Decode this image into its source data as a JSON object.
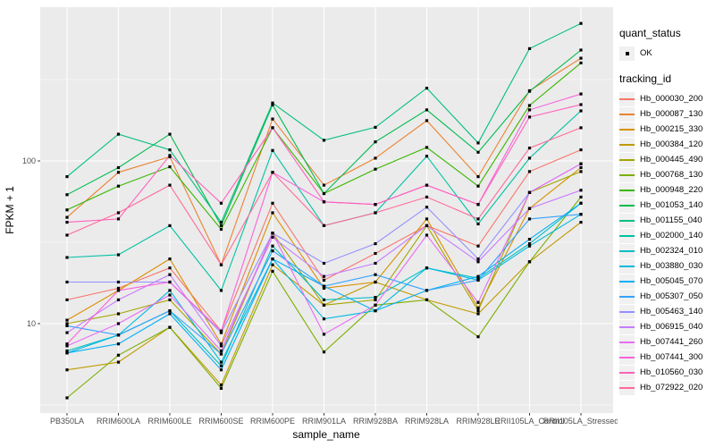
{
  "figure": {
    "background": "#FFFFFF",
    "panel_background": "#EBEBEB",
    "grid_color": "#FFFFFF",
    "axis_text_color": "#4D4D4D",
    "point_color": "#000000",
    "legend_key_background": "#F0F0F0"
  },
  "axes": {
    "x_title": "sample_name",
    "y_title": "FPKM + 1",
    "y_tick_labels": [
      "100",
      "10"
    ],
    "y_tick_values": [
      100,
      10
    ],
    "y_minor_values": [
      3.1623,
      31.623,
      316.23
    ]
  },
  "legend": {
    "quant_status": {
      "title": "quant_status",
      "items": [
        {
          "label": "OK",
          "marker": "black-point"
        }
      ]
    },
    "tracking_id": {
      "title": "tracking_id",
      "items": [
        {
          "label": "Hb_000030_200",
          "color": "#F8766D"
        },
        {
          "label": "Hb_000087_130",
          "color": "#EA8331"
        },
        {
          "label": "Hb_000215_330",
          "color": "#D89000"
        },
        {
          "label": "Hb_000384_120",
          "color": "#C09B00"
        },
        {
          "label": "Hb_000445_490",
          "color": "#A3A500"
        },
        {
          "label": "Hb_000768_130",
          "color": "#7CAE00"
        },
        {
          "label": "Hb_000948_220",
          "color": "#39B600"
        },
        {
          "label": "Hb_001053_140",
          "color": "#00BB4E"
        },
        {
          "label": "Hb_001155_040",
          "color": "#00BF7D"
        },
        {
          "label": "Hb_002000_140",
          "color": "#00C1A3"
        },
        {
          "label": "Hb_002324_010",
          "color": "#00BFC4"
        },
        {
          "label": "Hb_003880_030",
          "color": "#00BAE0"
        },
        {
          "label": "Hb_005045_070",
          "color": "#00B0F6"
        },
        {
          "label": "Hb_005307_050",
          "color": "#35A2FF"
        },
        {
          "label": "Hb_005463_140",
          "color": "#9590FF"
        },
        {
          "label": "Hb_006915_040",
          "color": "#C77CFF"
        },
        {
          "label": "Hb_007441_260",
          "color": "#E76BF3"
        },
        {
          "label": "Hb_007441_300",
          "color": "#FA62DB"
        },
        {
          "label": "Hb_010560_030",
          "color": "#FF62BC"
        },
        {
          "label": "Hb_072922_020",
          "color": "#FF6A98"
        }
      ]
    }
  },
  "chart_data": {
    "type": "line",
    "title": "",
    "xlabel": "sample_name",
    "ylabel": "FPKM + 1",
    "y_scale": "log10",
    "ylim": [
      2.8,
      950
    ],
    "grid": true,
    "legend_position": "right",
    "point_marker": "black square (quant_status = OK)",
    "categories": [
      "PB350LA",
      "RRIM600LA",
      "RRIM600LE",
      "RRIM600SE",
      "RRIM600PE",
      "RRIM901LA",
      "RRIM928BA",
      "RRIM928LA",
      "RRIM928LE",
      "RRII105LA_Control",
      "RRII105LA_Stressed"
    ],
    "series": [
      {
        "name": "Hb_000030_200",
        "color": "#F8766D",
        "values": [
          14,
          16.5,
          22,
          9,
          55,
          18.5,
          27,
          40,
          30,
          86,
          117
        ]
      },
      {
        "name": "Hb_000087_130",
        "color": "#EA8331",
        "values": [
          45,
          85,
          106,
          23,
          181,
          71,
          104,
          177,
          80,
          270,
          428
        ]
      },
      {
        "name": "Hb_000215_330",
        "color": "#D89000",
        "values": [
          10.5,
          16,
          25,
          7.5,
          48,
          16.5,
          18,
          44,
          12.5,
          51,
          91
        ]
      },
      {
        "name": "Hb_000384_120",
        "color": "#C09B00",
        "values": [
          5.2,
          5.8,
          9.5,
          4.2,
          23,
          13,
          18,
          14,
          11.5,
          24,
          42
        ]
      },
      {
        "name": "Hb_000445_490",
        "color": "#A3A500",
        "values": [
          10,
          11.5,
          14,
          6.5,
          36,
          13,
          14,
          40,
          12,
          64,
          86
        ]
      },
      {
        "name": "Hb_000768_130",
        "color": "#7CAE00",
        "values": [
          3.5,
          6.4,
          9.5,
          4,
          21,
          6.7,
          13,
          14,
          8.3,
          24,
          60
        ]
      },
      {
        "name": "Hb_000948_220",
        "color": "#39B600",
        "values": [
          50,
          70,
          92,
          38,
          160,
          63,
          89,
          121,
          70,
          219,
          400
        ]
      },
      {
        "name": "Hb_001053_140",
        "color": "#00BB4E",
        "values": [
          62,
          91,
          146,
          40,
          221,
          63,
          131,
          206,
          113,
          268,
          480
        ]
      },
      {
        "name": "Hb_001155_040",
        "color": "#00BF7D",
        "values": [
          80,
          146,
          117,
          42,
          227,
          134,
          161,
          280,
          129,
          490,
          700
        ]
      },
      {
        "name": "Hb_002000_140",
        "color": "#00C1A3",
        "values": [
          25.5,
          26.5,
          40,
          16,
          116,
          40,
          48,
          107,
          41,
          104,
          203
        ]
      },
      {
        "name": "Hb_002324_010",
        "color": "#00BFC4",
        "values": [
          6.8,
          8.5,
          12,
          5.5,
          30,
          14,
          14.5,
          22,
          19,
          31,
          55
        ]
      },
      {
        "name": "Hb_003880_030",
        "color": "#00BAE0",
        "values": [
          6.6,
          8.5,
          16,
          5.8,
          25,
          10.7,
          12,
          22,
          18.5,
          30,
          47
        ]
      },
      {
        "name": "Hb_005045_070",
        "color": "#00B0F6",
        "values": [
          6.6,
          7.5,
          11.5,
          5.2,
          25,
          17,
          12,
          16,
          19.5,
          33,
          55
        ]
      },
      {
        "name": "Hb_005307_050",
        "color": "#35A2FF",
        "values": [
          9.7,
          8.5,
          12,
          6.5,
          28,
          17,
          20,
          16,
          18.5,
          44,
          47
        ]
      },
      {
        "name": "Hb_005463_140",
        "color": "#9590FF",
        "values": [
          18,
          18,
          18,
          8.8,
          36,
          23.5,
          31,
          52,
          25,
          64,
          96
        ]
      },
      {
        "name": "Hb_006915_040",
        "color": "#C77CFF",
        "values": [
          8.8,
          14,
          20,
          7.3,
          34,
          19.5,
          23.5,
          40,
          24,
          51,
          66
        ]
      },
      {
        "name": "Hb_007441_260",
        "color": "#E76BF3",
        "values": [
          7.3,
          10,
          15,
          6.8,
          36,
          8.6,
          13,
          35,
          13.5,
          64,
          96
        ]
      },
      {
        "name": "Hb_007441_300",
        "color": "#FA62DB",
        "values": [
          7.5,
          16,
          18,
          9,
          85,
          56,
          54,
          71,
          54,
          206,
          258
        ]
      },
      {
        "name": "Hb_010560_030",
        "color": "#FF62BC",
        "values": [
          42,
          44,
          108,
          55,
          160,
          56,
          54,
          71,
          54,
          186,
          222
        ]
      },
      {
        "name": "Hb_072922_020",
        "color": "#FF6A98",
        "values": [
          35,
          48,
          71,
          23,
          85,
          40,
          48,
          60,
          44,
          120,
          160
        ]
      }
    ]
  }
}
